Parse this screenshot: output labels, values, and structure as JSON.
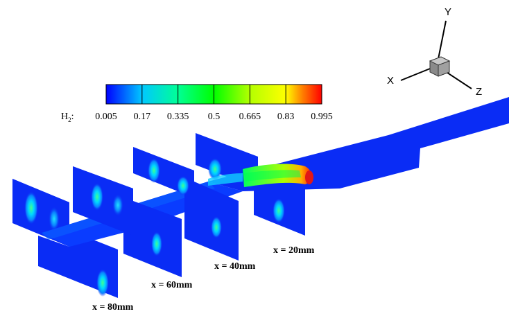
{
  "colorbar": {
    "variable": "H",
    "variable_subscript": "2",
    "variable_suffix": ":",
    "ticks": [
      "0.005",
      "0.17",
      "0.335",
      "0.5",
      "0.665",
      "0.83",
      "0.995"
    ],
    "min": 0.005,
    "max": 0.995,
    "colormap": [
      "#0000ff",
      "#00c8ff",
      "#00ff96",
      "#00ff00",
      "#b4ff00",
      "#ffff00",
      "#ff8000",
      "#ff0000"
    ]
  },
  "axes_triad": {
    "x": "X",
    "y": "Y",
    "z": "Z"
  },
  "slice_labels": [
    {
      "text": "x = 20mm"
    },
    {
      "text": "x = 40mm"
    },
    {
      "text": "x = 60mm"
    },
    {
      "text": "x = 80mm"
    }
  ],
  "colors": {
    "background": "#ffffff",
    "flow_base": "#0a2cf5",
    "jet_core": "#e01818"
  }
}
